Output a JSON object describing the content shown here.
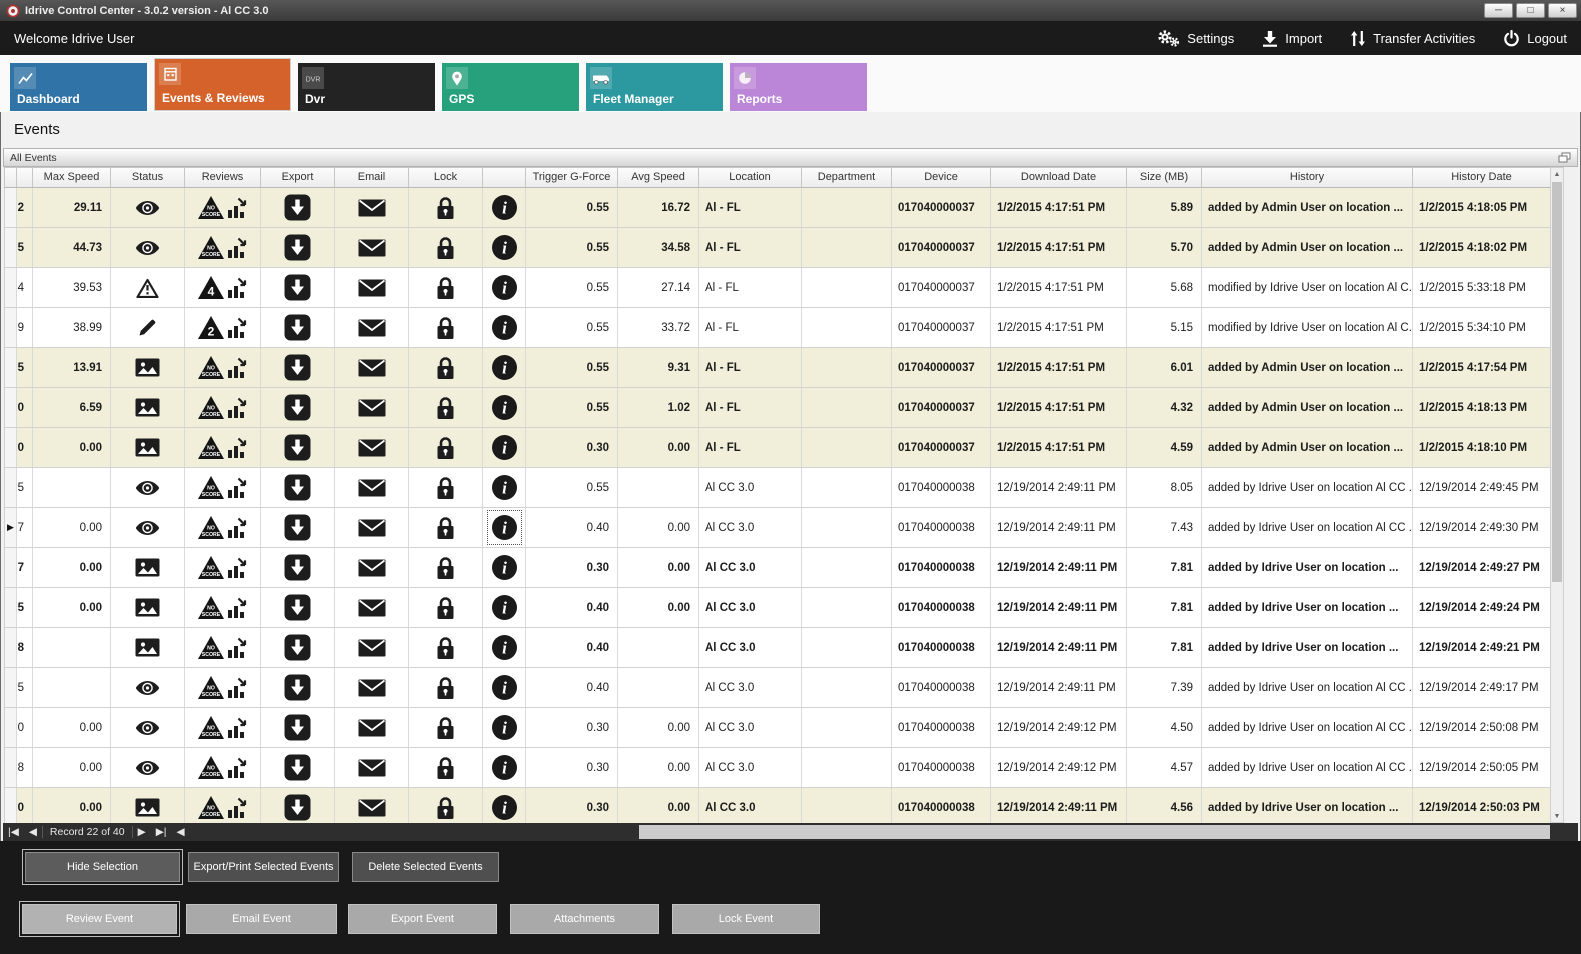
{
  "window": {
    "title": "Idrive Control Center - 3.0.2 version - Al CC 3.0"
  },
  "topbar": {
    "welcome": "Welcome Idrive User",
    "actions": [
      {
        "label": "Settings",
        "icon": "gear-icon"
      },
      {
        "label": "Import",
        "icon": "import-icon"
      },
      {
        "label": "Transfer Activities",
        "icon": "transfer-icon"
      },
      {
        "label": "Logout",
        "icon": "power-icon"
      }
    ]
  },
  "tabs": [
    {
      "label": "Dashboard",
      "color": "#2f73a7",
      "icon": "chart",
      "active": false
    },
    {
      "label": "Events & Reviews",
      "color": "#d4622a",
      "icon": "events",
      "active": true
    },
    {
      "label": "Dvr",
      "color": "#232323",
      "icon": "dvr",
      "active": false
    },
    {
      "label": "GPS",
      "color": "#27a17b",
      "icon": "gps",
      "active": false
    },
    {
      "label": "Fleet Manager",
      "color": "#2c98a0",
      "icon": "fleet",
      "active": false
    },
    {
      "label": "Reports",
      "color": "#bb86d7",
      "icon": "reports",
      "active": false
    }
  ],
  "page": {
    "heading": "Events",
    "panel_title": "All Events"
  },
  "table": {
    "columns": [
      "",
      "",
      "Max Speed",
      "Status",
      "Reviews",
      "Export",
      "Email",
      "Lock",
      "",
      "Trigger G-Force",
      "Avg Speed",
      "Location",
      "Department",
      "Device",
      "Download Date",
      "Size (MB)",
      "History",
      "History Date"
    ],
    "rows": [
      {
        "edge": "2",
        "max_speed": "29.11",
        "status_icon": "eye",
        "score": "NO SCORE",
        "trigger": "0.55",
        "avg_speed": "16.72",
        "location": "Al - FL",
        "department": "",
        "device": "017040000037",
        "download_date": "1/2/2015 4:17:51 PM",
        "size_mb": "5.89",
        "history": "added by Admin User on location ...",
        "history_date": "1/2/2015 4:18:05 PM",
        "bold": true,
        "beige": true,
        "indicator": false,
        "info_focus": false
      },
      {
        "edge": "5",
        "max_speed": "44.73",
        "status_icon": "eye",
        "score": "NO SCORE",
        "trigger": "0.55",
        "avg_speed": "34.58",
        "location": "Al - FL",
        "department": "",
        "device": "017040000037",
        "download_date": "1/2/2015 4:17:51 PM",
        "size_mb": "5.70",
        "history": "added by Admin User on location ...",
        "history_date": "1/2/2015 4:18:02 PM",
        "bold": true,
        "beige": true,
        "indicator": false,
        "info_focus": false
      },
      {
        "edge": "4",
        "max_speed": "39.53",
        "status_icon": "warning",
        "score": "4",
        "trigger": "0.55",
        "avg_speed": "27.14",
        "location": "Al - FL",
        "department": "",
        "device": "017040000037",
        "download_date": "1/2/2015 4:17:51 PM",
        "size_mb": "5.68",
        "history": "modified by Idrive User on location Al C...",
        "history_date": "1/2/2015 5:33:18 PM",
        "bold": false,
        "beige": false,
        "indicator": false,
        "info_focus": false
      },
      {
        "edge": "9",
        "max_speed": "38.99",
        "status_icon": "pencil",
        "score": "2",
        "trigger": "0.55",
        "avg_speed": "33.72",
        "location": "Al - FL",
        "department": "",
        "device": "017040000037",
        "download_date": "1/2/2015 4:17:51 PM",
        "size_mb": "5.15",
        "history": "modified by Idrive User on location Al C...",
        "history_date": "1/2/2015 5:34:10 PM",
        "bold": false,
        "beige": false,
        "indicator": false,
        "info_focus": false
      },
      {
        "edge": "5",
        "max_speed": "13.91",
        "status_icon": "image",
        "score": "NO SCORE",
        "trigger": "0.55",
        "avg_speed": "9.31",
        "location": "Al - FL",
        "department": "",
        "device": "017040000037",
        "download_date": "1/2/2015 4:17:51 PM",
        "size_mb": "6.01",
        "history": "added by Admin User on location ...",
        "history_date": "1/2/2015 4:17:54 PM",
        "bold": true,
        "beige": true,
        "indicator": false,
        "info_focus": false
      },
      {
        "edge": "0",
        "max_speed": "6.59",
        "status_icon": "image",
        "score": "NO SCORE",
        "trigger": "0.55",
        "avg_speed": "1.02",
        "location": "Al - FL",
        "department": "",
        "device": "017040000037",
        "download_date": "1/2/2015 4:17:51 PM",
        "size_mb": "4.32",
        "history": "added by Admin User on location ...",
        "history_date": "1/2/2015 4:18:13 PM",
        "bold": true,
        "beige": true,
        "indicator": false,
        "info_focus": false
      },
      {
        "edge": "0",
        "max_speed": "0.00",
        "status_icon": "image",
        "score": "NO SCORE",
        "trigger": "0.30",
        "avg_speed": "0.00",
        "location": "Al - FL",
        "department": "",
        "device": "017040000037",
        "download_date": "1/2/2015 4:17:51 PM",
        "size_mb": "4.59",
        "history": "added by Admin User on location ...",
        "history_date": "1/2/2015 4:18:10 PM",
        "bold": true,
        "beige": true,
        "indicator": false,
        "info_focus": false
      },
      {
        "edge": "5",
        "max_speed": "",
        "status_icon": "eye",
        "score": "NO SCORE",
        "trigger": "0.55",
        "avg_speed": "",
        "location": "Al CC 3.0",
        "department": "",
        "device": "017040000038",
        "download_date": "12/19/2014 2:49:11 PM",
        "size_mb": "8.05",
        "history": "added by Idrive User on location Al CC ...",
        "history_date": "12/19/2014 2:49:45 PM",
        "bold": false,
        "beige": false,
        "indicator": false,
        "info_focus": false
      },
      {
        "edge": "7",
        "max_speed": "0.00",
        "status_icon": "eye",
        "score": "NO SCORE",
        "trigger": "0.40",
        "avg_speed": "0.00",
        "location": "Al CC 3.0",
        "department": "",
        "device": "017040000038",
        "download_date": "12/19/2014 2:49:11 PM",
        "size_mb": "7.43",
        "history": "added by Idrive User on location Al CC ...",
        "history_date": "12/19/2014 2:49:30 PM",
        "bold": false,
        "beige": false,
        "indicator": true,
        "info_focus": true
      },
      {
        "edge": "7",
        "max_speed": "0.00",
        "status_icon": "image",
        "score": "NO SCORE",
        "trigger": "0.30",
        "avg_speed": "0.00",
        "location": "Al CC 3.0",
        "department": "",
        "device": "017040000038",
        "download_date": "12/19/2014 2:49:11 PM",
        "size_mb": "7.81",
        "history": "added by Idrive User on location ...",
        "history_date": "12/19/2014 2:49:27 PM",
        "bold": true,
        "beige": false,
        "indicator": false,
        "info_focus": false
      },
      {
        "edge": "5",
        "max_speed": "0.00",
        "status_icon": "image",
        "score": "NO SCORE",
        "trigger": "0.40",
        "avg_speed": "0.00",
        "location": "Al CC 3.0",
        "department": "",
        "device": "017040000038",
        "download_date": "12/19/2014 2:49:11 PM",
        "size_mb": "7.81",
        "history": "added by Idrive User on location ...",
        "history_date": "12/19/2014 2:49:24 PM",
        "bold": true,
        "beige": false,
        "indicator": false,
        "info_focus": false
      },
      {
        "edge": "8",
        "max_speed": "",
        "status_icon": "image",
        "score": "NO SCORE",
        "trigger": "0.40",
        "avg_speed": "",
        "location": "Al CC 3.0",
        "department": "",
        "device": "017040000038",
        "download_date": "12/19/2014 2:49:11 PM",
        "size_mb": "7.81",
        "history": "added by Idrive User on location ...",
        "history_date": "12/19/2014 2:49:21 PM",
        "bold": true,
        "beige": false,
        "indicator": false,
        "info_focus": false
      },
      {
        "edge": "5",
        "max_speed": "",
        "status_icon": "eye",
        "score": "NO SCORE",
        "trigger": "0.40",
        "avg_speed": "",
        "location": "Al CC 3.0",
        "department": "",
        "device": "017040000038",
        "download_date": "12/19/2014 2:49:11 PM",
        "size_mb": "7.39",
        "history": "added by Idrive User on location Al CC ...",
        "history_date": "12/19/2014 2:49:17 PM",
        "bold": false,
        "beige": false,
        "indicator": false,
        "info_focus": false
      },
      {
        "edge": "0",
        "max_speed": "0.00",
        "status_icon": "eye",
        "score": "NO SCORE",
        "trigger": "0.30",
        "avg_speed": "0.00",
        "location": "Al CC 3.0",
        "department": "",
        "device": "017040000038",
        "download_date": "12/19/2014 2:49:12 PM",
        "size_mb": "4.50",
        "history": "added by Idrive User on location Al CC ...",
        "history_date": "12/19/2014 2:50:08 PM",
        "bold": false,
        "beige": false,
        "indicator": false,
        "info_focus": false
      },
      {
        "edge": "8",
        "max_speed": "0.00",
        "status_icon": "eye",
        "score": "NO SCORE",
        "trigger": "0.30",
        "avg_speed": "0.00",
        "location": "Al CC 3.0",
        "department": "",
        "device": "017040000038",
        "download_date": "12/19/2014 2:49:12 PM",
        "size_mb": "4.57",
        "history": "added by Idrive User on location Al CC ...",
        "history_date": "12/19/2014 2:50:05 PM",
        "bold": false,
        "beige": false,
        "indicator": false,
        "info_focus": false
      },
      {
        "edge": "0",
        "max_speed": "0.00",
        "status_icon": "image",
        "score": "NO SCORE",
        "trigger": "0.30",
        "avg_speed": "0.00",
        "location": "Al CC 3.0",
        "department": "",
        "device": "017040000038",
        "download_date": "12/19/2014 2:49:11 PM",
        "size_mb": "4.56",
        "history": "added by Idrive User on location ...",
        "history_date": "12/19/2014 2:50:03 PM",
        "bold": true,
        "beige": true,
        "indicator": false,
        "info_focus": false
      }
    ]
  },
  "pager": {
    "record_text": "Record 22 of 40"
  },
  "actions_panel": {
    "row1": [
      "Hide Selection",
      "Export/Print Selected Events",
      "Delete Selected  Events"
    ],
    "row2": [
      "Review Event",
      "Email Event",
      "Export Event",
      "Attachments",
      "Lock Event"
    ]
  },
  "colors": {
    "highlight_row": "#f1efd9",
    "topbar_bg": "#1b1b1b",
    "actions_bg": "#191919"
  }
}
